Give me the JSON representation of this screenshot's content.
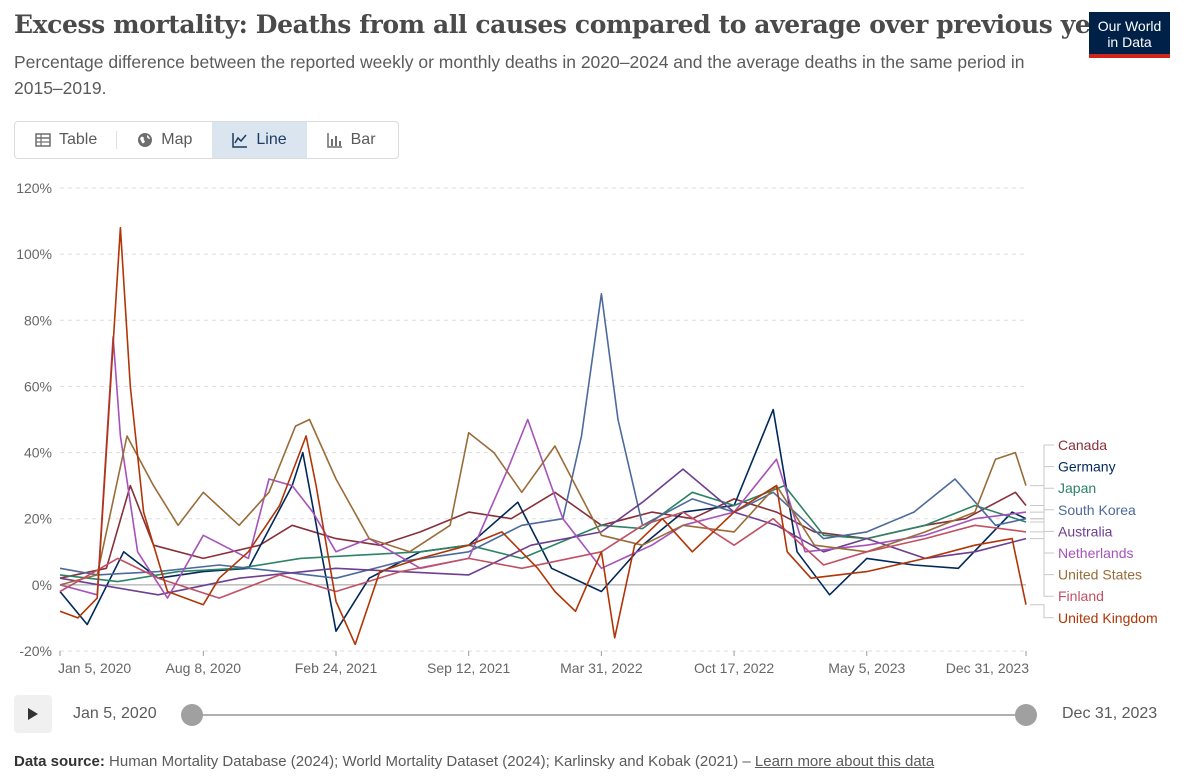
{
  "title": "Excess mortality: Deaths from all causes compared to average over previous years",
  "subtitle": "Percentage difference between the reported weekly or monthly deaths in 2020–2024 and the average deaths in the same period in 2015–2019.",
  "logo": {
    "line1": "Our World",
    "line2": "in Data"
  },
  "tabs": [
    {
      "label": "Table",
      "icon": "table-icon",
      "active": false
    },
    {
      "label": "Map",
      "icon": "globe-icon",
      "active": false
    },
    {
      "label": "Line",
      "icon": "line-chart-icon",
      "active": true
    },
    {
      "label": "Bar",
      "icon": "bar-chart-icon",
      "active": false
    }
  ],
  "timeline": {
    "start_label": "Jan 5, 2020",
    "end_label": "Dec 31, 2023",
    "play_icon": "play-icon"
  },
  "source": {
    "label": "Data source:",
    "text": "Human Mortality Database (2024); World Mortality Dataset (2024); Karlinsky and Kobak (2021) –",
    "link": "Learn more about this data"
  },
  "chart_data": {
    "type": "line",
    "title": "Excess mortality: Deaths from all causes compared to average over previous years",
    "ylabel": "",
    "xlabel": "",
    "ylim": [
      -20,
      120
    ],
    "y_ticks": [
      -20,
      0,
      20,
      40,
      60,
      80,
      100,
      120
    ],
    "y_tick_labels": [
      "-20%",
      "0%",
      "20%",
      "40%",
      "60%",
      "80%",
      "100%",
      "120%"
    ],
    "x_tick_labels": [
      "Jan 5, 2020",
      "Aug 8, 2020",
      "Feb 24, 2021",
      "Sep 12, 2021",
      "Mar 31, 2022",
      "Oct 17, 2022",
      "May 5, 2023",
      "Dec 31, 2023"
    ],
    "x_tick_dates": [
      "2020-01-05",
      "2020-08-08",
      "2021-02-24",
      "2021-09-12",
      "2022-03-31",
      "2022-10-17",
      "2023-05-05",
      "2023-12-31"
    ],
    "grid": true,
    "legend_placement": "right",
    "series": [
      {
        "name": "Canada",
        "color": "#883039",
        "x": [
          "2020-01-05",
          "2020-03-15",
          "2020-04-20",
          "2020-05-25",
          "2020-08-08",
          "2020-11-01",
          "2020-12-20",
          "2021-02-24",
          "2021-05-01",
          "2021-07-01",
          "2021-09-12",
          "2021-11-15",
          "2022-01-20",
          "2022-03-31",
          "2022-06-15",
          "2022-08-15",
          "2022-10-17",
          "2022-12-20",
          "2023-02-15",
          "2023-05-05",
          "2023-08-01",
          "2023-10-01",
          "2023-12-15",
          "2023-12-31"
        ],
        "values": [
          2,
          5,
          30,
          12,
          8,
          12,
          18,
          14,
          12,
          16,
          22,
          20,
          28,
          18,
          22,
          20,
          26,
          22,
          16,
          14,
          18,
          20,
          28,
          24
        ]
      },
      {
        "name": "Germany",
        "color": "#00295b",
        "x": [
          "2020-01-05",
          "2020-02-15",
          "2020-04-10",
          "2020-06-01",
          "2020-08-08",
          "2020-10-15",
          "2020-12-20",
          "2021-01-05",
          "2021-02-24",
          "2021-04-15",
          "2021-07-01",
          "2021-09-12",
          "2021-11-25",
          "2022-01-15",
          "2022-03-31",
          "2022-06-01",
          "2022-08-01",
          "2022-10-17",
          "2022-12-15",
          "2023-01-20",
          "2023-03-10",
          "2023-05-05",
          "2023-07-15",
          "2023-09-20",
          "2023-12-10",
          "2023-12-31"
        ],
        "values": [
          -2,
          -12,
          10,
          2,
          4,
          5,
          30,
          40,
          -14,
          2,
          10,
          12,
          25,
          5,
          -2,
          12,
          22,
          24,
          53,
          10,
          -3,
          8,
          6,
          5,
          22,
          20
        ]
      },
      {
        "name": "Japan",
        "color": "#2c8465",
        "x": [
          "2020-01-05",
          "2020-04-01",
          "2020-07-01",
          "2020-10-01",
          "2021-01-01",
          "2021-04-01",
          "2021-07-01",
          "2021-09-12",
          "2021-12-01",
          "2022-03-31",
          "2022-06-01",
          "2022-08-15",
          "2022-10-17",
          "2023-01-01",
          "2023-03-01",
          "2023-05-05",
          "2023-08-01",
          "2023-10-15",
          "2023-12-31"
        ],
        "values": [
          3,
          1,
          4,
          5,
          8,
          9,
          10,
          12,
          8,
          18,
          17,
          28,
          24,
          30,
          15,
          14,
          18,
          24,
          19
        ]
      },
      {
        "name": "South Korea",
        "color": "#4c6a9c",
        "x": [
          "2020-01-05",
          "2020-03-01",
          "2020-06-01",
          "2020-09-01",
          "2020-12-01",
          "2021-02-24",
          "2021-06-01",
          "2021-09-12",
          "2021-12-01",
          "2022-02-01",
          "2022-03-01",
          "2022-03-31",
          "2022-04-25",
          "2022-06-01",
          "2022-08-15",
          "2022-10-17",
          "2022-12-15",
          "2023-03-01",
          "2023-05-05",
          "2023-07-15",
          "2023-09-15",
          "2023-11-15",
          "2023-12-31"
        ],
        "values": [
          5,
          3,
          4,
          6,
          4,
          2,
          7,
          10,
          18,
          20,
          45,
          88,
          50,
          18,
          26,
          22,
          28,
          14,
          16,
          22,
          32,
          18,
          20
        ]
      },
      {
        "name": "Australia",
        "color": "#6d3e91",
        "x": [
          "2020-01-05",
          "2020-06-01",
          "2020-10-01",
          "2021-02-24",
          "2021-06-01",
          "2021-09-12",
          "2021-12-15",
          "2022-03-31",
          "2022-06-01",
          "2022-08-01",
          "2022-10-17",
          "2022-12-20",
          "2023-03-01",
          "2023-05-05",
          "2023-08-01",
          "2023-10-15",
          "2023-12-31"
        ],
        "values": [
          2,
          -3,
          2,
          5,
          4,
          3,
          12,
          16,
          25,
          35,
          22,
          18,
          10,
          14,
          8,
          10,
          14
        ]
      },
      {
        "name": "Netherlands",
        "color": "#a652ba",
        "x": [
          "2020-01-05",
          "2020-03-01",
          "2020-03-25",
          "2020-04-05",
          "2020-05-01",
          "2020-06-15",
          "2020-08-08",
          "2020-10-15",
          "2020-11-15",
          "2020-12-20",
          "2021-01-20",
          "2021-02-24",
          "2021-04-15",
          "2021-07-01",
          "2021-09-12",
          "2021-11-10",
          "2021-12-10",
          "2022-02-01",
          "2022-03-31",
          "2022-06-15",
          "2022-08-01",
          "2022-10-17",
          "2022-12-20",
          "2023-02-01",
          "2023-05-05",
          "2023-08-01",
          "2023-10-15",
          "2023-12-31"
        ],
        "values": [
          0,
          -3,
          75,
          45,
          10,
          -4,
          15,
          8,
          32,
          30,
          22,
          10,
          14,
          5,
          8,
          35,
          50,
          20,
          5,
          12,
          18,
          22,
          38,
          10,
          12,
          15,
          20,
          22
        ]
      },
      {
        "name": "United States",
        "color": "#996d39",
        "x": [
          "2020-01-05",
          "2020-03-01",
          "2020-04-15",
          "2020-05-25",
          "2020-07-01",
          "2020-08-08",
          "2020-10-01",
          "2020-11-15",
          "2020-12-25",
          "2021-01-15",
          "2021-02-24",
          "2021-04-15",
          "2021-06-15",
          "2021-08-15",
          "2021-09-12",
          "2021-10-20",
          "2021-12-01",
          "2022-01-20",
          "2022-03-31",
          "2022-06-01",
          "2022-08-01",
          "2022-10-17",
          "2022-12-20",
          "2023-02-15",
          "2023-05-05",
          "2023-08-01",
          "2023-10-15",
          "2023-11-15",
          "2023-12-15",
          "2023-12-31"
        ],
        "values": [
          0,
          3,
          45,
          30,
          18,
          28,
          18,
          28,
          48,
          50,
          32,
          14,
          10,
          18,
          46,
          40,
          28,
          42,
          15,
          12,
          18,
          16,
          30,
          12,
          10,
          16,
          22,
          38,
          40,
          30
        ]
      },
      {
        "name": "Finland",
        "color": "#c15065",
        "x": [
          "2020-01-05",
          "2020-04-01",
          "2020-06-01",
          "2020-09-01",
          "2020-12-01",
          "2021-02-24",
          "2021-06-01",
          "2021-09-12",
          "2021-12-01",
          "2022-03-31",
          "2022-06-01",
          "2022-08-01",
          "2022-10-17",
          "2022-12-15",
          "2023-03-01",
          "2023-05-05",
          "2023-08-01",
          "2023-10-15",
          "2023-12-31"
        ],
        "values": [
          -2,
          8,
          2,
          -4,
          3,
          -2,
          4,
          8,
          5,
          10,
          18,
          22,
          12,
          20,
          6,
          10,
          14,
          18,
          16
        ]
      },
      {
        "name": "United Kingdom",
        "color": "#b13507",
        "x": [
          "2020-01-05",
          "2020-02-01",
          "2020-03-01",
          "2020-04-05",
          "2020-04-20",
          "2020-05-10",
          "2020-06-15",
          "2020-08-08",
          "2020-09-01",
          "2020-10-15",
          "2020-12-01",
          "2021-01-10",
          "2021-01-25",
          "2021-02-24",
          "2021-03-25",
          "2021-05-01",
          "2021-07-01",
          "2021-09-12",
          "2021-11-01",
          "2021-12-25",
          "2022-01-20",
          "2022-02-20",
          "2022-03-31",
          "2022-04-20",
          "2022-05-20",
          "2022-07-01",
          "2022-08-15",
          "2022-10-17",
          "2022-12-20",
          "2023-01-05",
          "2023-02-10",
          "2023-05-05",
          "2023-08-01",
          "2023-10-15",
          "2023-12-10",
          "2023-12-31"
        ],
        "values": [
          -8,
          -10,
          -4,
          108,
          60,
          22,
          -2,
          -6,
          2,
          10,
          24,
          45,
          30,
          -5,
          -18,
          4,
          8,
          12,
          16,
          5,
          -2,
          -8,
          10,
          -16,
          12,
          20,
          10,
          22,
          30,
          10,
          2,
          4,
          8,
          12,
          14,
          -6
        ]
      }
    ]
  }
}
